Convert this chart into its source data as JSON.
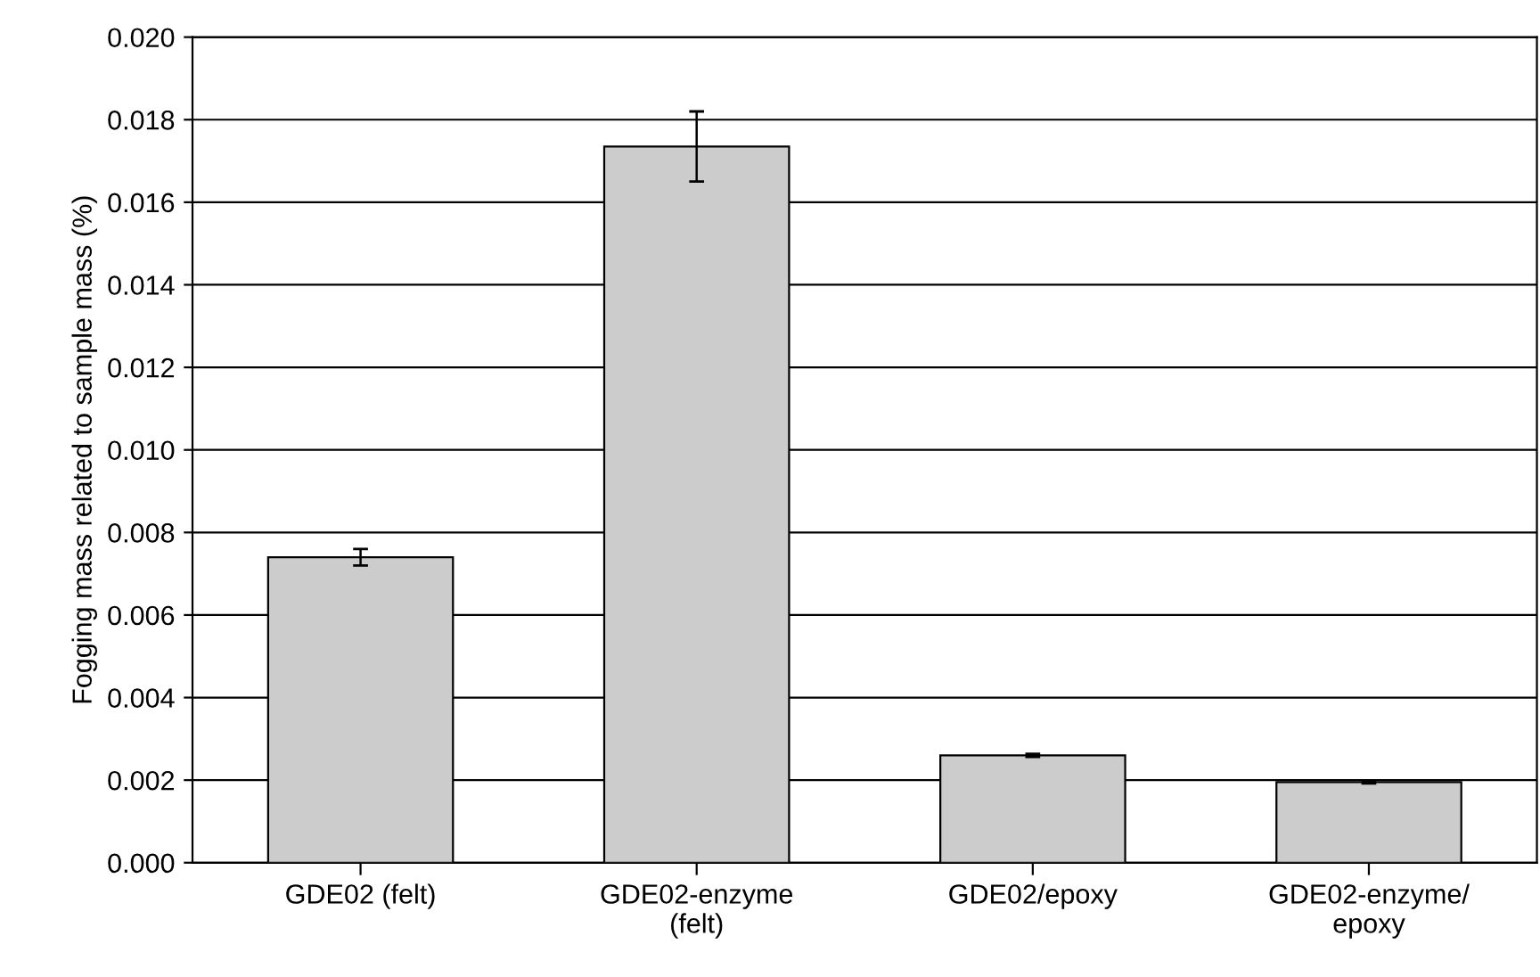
{
  "chart_data": {
    "type": "bar",
    "ylabel": "Fogging mass related to sample mass (%)",
    "categories": [
      "GDE02 (felt)",
      "GDE02-enzyme\n(felt)",
      "GDE02/epoxy",
      "GDE02-enzyme/\nepoxy"
    ],
    "values": [
      0.0074,
      0.01735,
      0.0026,
      0.00195
    ],
    "errors": [
      0.0002,
      [
        0.0165,
        0.0182
      ],
      4e-05,
      3e-05
    ],
    "color": "#cccccc",
    "ylim": [
      0,
      0.02
    ],
    "yticks": [
      {
        "value": 0,
        "label": "0.000"
      },
      {
        "value": 0.002,
        "label": "0.002"
      },
      {
        "value": 0.004,
        "label": "0.004"
      },
      {
        "value": 0.006,
        "label": "0.006"
      },
      {
        "value": 0.008,
        "label": "0.008"
      },
      {
        "value": 0.01,
        "label": "0.010"
      },
      {
        "value": 0.012,
        "label": "0.012"
      },
      {
        "value": 0.014,
        "label": "0.014"
      },
      {
        "value": 0.016,
        "label": "0.016"
      },
      {
        "value": 0.018,
        "label": "0.018"
      },
      {
        "value": 0.02,
        "label": "0.020"
      }
    ],
    "grid": "y"
  }
}
